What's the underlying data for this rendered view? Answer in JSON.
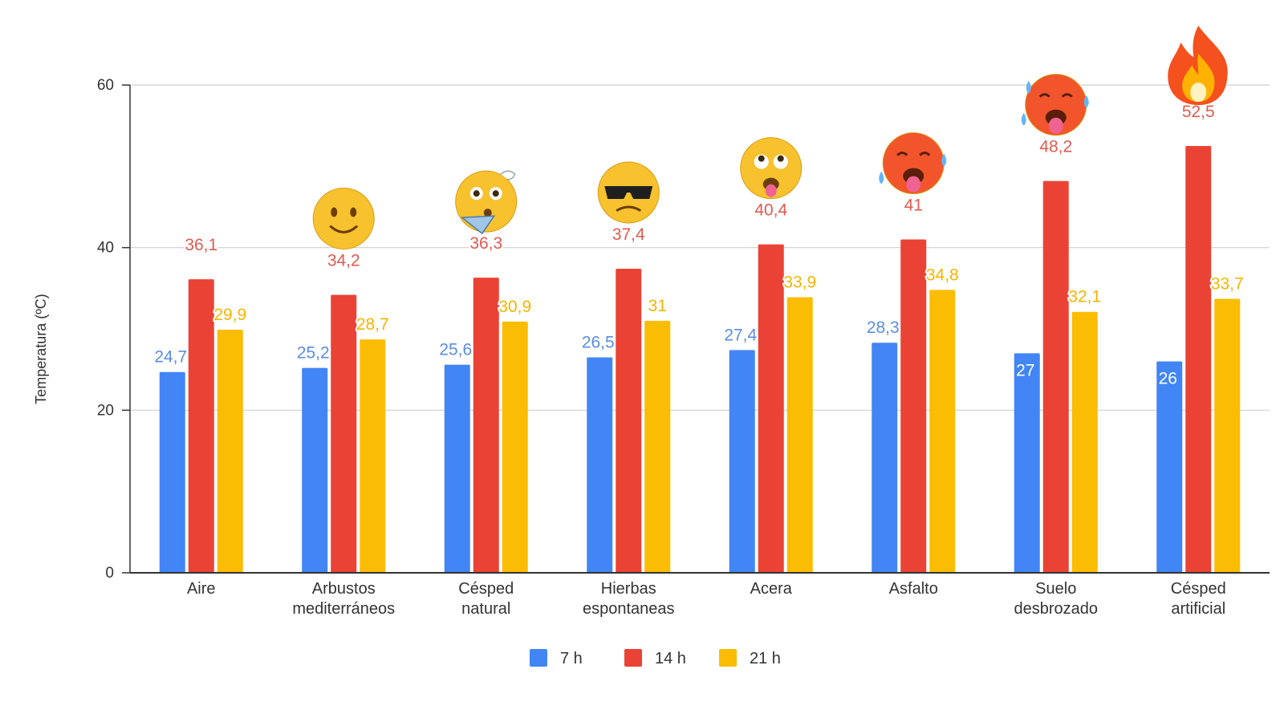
{
  "chart_data": {
    "type": "bar",
    "title": "",
    "xlabel": "",
    "ylabel": "Temperatura (ºC)",
    "ylim": [
      0,
      60
    ],
    "yticks": [
      0,
      20,
      40,
      60
    ],
    "grid": true,
    "legend_position": "bottom",
    "categories": [
      [
        "Aire"
      ],
      [
        "Arbustos",
        "mediterráneos"
      ],
      [
        "Césped",
        "natural"
      ],
      [
        "Hierbas",
        "espontaneas"
      ],
      [
        "Acera"
      ],
      [
        "Asfalto"
      ],
      [
        "Suelo",
        "desbrozado"
      ],
      [
        "Césped",
        "artificial"
      ]
    ],
    "series": [
      {
        "name": "7 h",
        "color": "#4285f4",
        "label_color": "#5b8ee0",
        "values": [
          24.7,
          25.2,
          25.6,
          26.5,
          27.4,
          28.3,
          27,
          26
        ],
        "labels": [
          "24,7",
          "25,2",
          "25,6",
          "26,5",
          "27,4",
          "28,3",
          "27",
          "26"
        ]
      },
      {
        "name": "14 h",
        "color": "#ea4335",
        "label_color": "#e05a50",
        "values": [
          36.1,
          34.2,
          36.3,
          37.4,
          40.4,
          41,
          48.2,
          52.5
        ],
        "labels": [
          "36,1",
          "34,2",
          "36,3",
          "37,4",
          "40,4",
          "41",
          "48,2",
          "52,5"
        ]
      },
      {
        "name": "21 h",
        "color": "#fbbc04",
        "label_color": "#f5b400",
        "values": [
          29.9,
          28.7,
          30.9,
          31,
          33.9,
          34.8,
          32.1,
          33.7
        ],
        "labels": [
          "29,9",
          "28,7",
          "30,9",
          "31",
          "33,9",
          "34,8",
          "32,1",
          "33,7"
        ]
      }
    ],
    "annotations": [
      null,
      "slightly-smiling-face-icon",
      "fanning-face-icon",
      "sunglasses-face-icon",
      "sweating-face-icon",
      "hot-face-icon",
      "hot-face-sweating-icon",
      "fire-icon"
    ]
  }
}
